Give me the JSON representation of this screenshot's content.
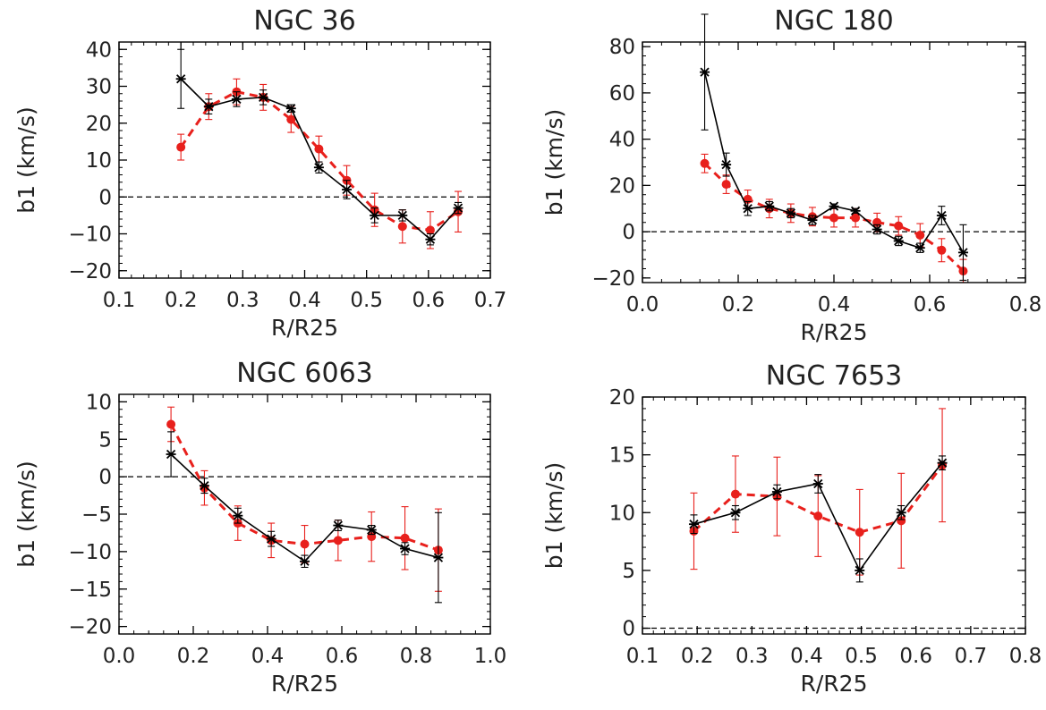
{
  "chart_data": [
    {
      "type": "line",
      "title": "NGC 36",
      "xlabel": "R/R25",
      "ylabel": "b1 (km/s)",
      "xlim": [
        0.1,
        0.7
      ],
      "ylim": [
        -22,
        42
      ],
      "xticks": [
        0.1,
        0.2,
        0.3,
        0.4,
        0.5,
        0.6,
        0.7
      ],
      "xtick_labels": [
        "0.1",
        "0.2",
        "0.3",
        "0.4",
        "0.5",
        "0.6",
        "0.7"
      ],
      "yticks": [
        -20,
        -10,
        0,
        10,
        20,
        30,
        40
      ],
      "ytick_labels": [
        "−20",
        "−10",
        "0",
        "10",
        "20",
        "30",
        "40"
      ],
      "reference_line": 0,
      "series": [
        {
          "name": "black",
          "color": "#000000",
          "style": "solid",
          "marker": "asterisk",
          "x": [
            0.2,
            0.245,
            0.29,
            0.333,
            0.378,
            0.423,
            0.468,
            0.513,
            0.558,
            0.603,
            0.648
          ],
          "y": [
            32,
            24.5,
            26.5,
            27,
            24,
            8,
            2,
            -5,
            -5,
            -11.5,
            -3
          ],
          "err": [
            8,
            2,
            2,
            2,
            1,
            1.5,
            2.5,
            2,
            1.5,
            1.5,
            1.5
          ]
        },
        {
          "name": "red",
          "color": "#e8201c",
          "style": "dashed",
          "marker": "circle",
          "x": [
            0.2,
            0.245,
            0.29,
            0.333,
            0.378,
            0.423,
            0.468,
            0.513,
            0.558,
            0.603,
            0.648
          ],
          "y": [
            13.5,
            24.5,
            28.5,
            27,
            21,
            13,
            4.5,
            -3.5,
            -8,
            -9,
            -4
          ],
          "err": [
            3.5,
            3.5,
            3.5,
            3.5,
            3.5,
            3.5,
            4,
            4.5,
            4.5,
            5,
            5.5
          ]
        }
      ]
    },
    {
      "type": "line",
      "title": "NGC 180",
      "xlabel": "R/R25",
      "ylabel": "b1 (km/s)",
      "xlim": [
        0.0,
        0.8
      ],
      "ylim": [
        -22,
        82
      ],
      "xticks": [
        0.0,
        0.2,
        0.4,
        0.6,
        0.8
      ],
      "xtick_labels": [
        "0.0",
        "0.2",
        "0.4",
        "0.6",
        "0.8"
      ],
      "yticks": [
        -20,
        0,
        20,
        40,
        60,
        80
      ],
      "ytick_labels": [
        "−20",
        "0",
        "20",
        "40",
        "60",
        "80"
      ],
      "reference_line": 0,
      "series": [
        {
          "name": "black",
          "color": "#000000",
          "style": "solid",
          "marker": "asterisk",
          "x": [
            0.13,
            0.175,
            0.22,
            0.265,
            0.31,
            0.355,
            0.4,
            0.445,
            0.49,
            0.535,
            0.58,
            0.625,
            0.67
          ],
          "y": [
            69,
            29,
            10,
            11,
            8,
            5,
            11,
            9,
            1,
            -4,
            -7,
            7,
            -9
          ],
          "err": [
            25,
            5,
            3,
            2,
            2,
            2,
            1,
            1,
            2,
            2,
            2,
            4,
            12
          ]
        },
        {
          "name": "red",
          "color": "#e8201c",
          "style": "dashed",
          "marker": "circle",
          "x": [
            0.13,
            0.175,
            0.22,
            0.265,
            0.31,
            0.355,
            0.4,
            0.445,
            0.49,
            0.535,
            0.58,
            0.625,
            0.67
          ],
          "y": [
            29.5,
            20.5,
            14,
            10,
            8,
            6.5,
            6,
            6,
            4,
            2.5,
            -1.5,
            -8,
            -17
          ],
          "err": [
            4,
            4,
            4,
            4,
            4,
            4,
            4,
            4,
            4,
            4,
            5,
            5,
            5
          ]
        }
      ]
    },
    {
      "type": "line",
      "title": "NGC 6063",
      "xlabel": "R/R25",
      "ylabel": "b1 (km/s)",
      "xlim": [
        0.0,
        1.0
      ],
      "ylim": [
        -21,
        11
      ],
      "xticks": [
        0.0,
        0.2,
        0.4,
        0.6,
        0.8,
        1.0
      ],
      "xtick_labels": [
        "0.0",
        "0.2",
        "0.4",
        "0.6",
        "0.8",
        "1.0"
      ],
      "yticks": [
        -20,
        -15,
        -10,
        -5,
        0,
        5,
        10
      ],
      "ytick_labels": [
        "−20",
        "−15",
        "−10",
        "−5",
        "0",
        "5",
        "10"
      ],
      "reference_line": 0,
      "series": [
        {
          "name": "black",
          "color": "#000000",
          "style": "solid",
          "marker": "asterisk",
          "x": [
            0.14,
            0.23,
            0.32,
            0.41,
            0.5,
            0.59,
            0.68,
            0.77,
            0.86
          ],
          "y": [
            3,
            -1.2,
            -5.2,
            -8.3,
            -11.3,
            -6.5,
            -7.1,
            -9.6,
            -10.8
          ],
          "err": [
            3,
            1,
            1,
            1,
            0.8,
            0.7,
            0.6,
            0.8,
            6
          ]
        },
        {
          "name": "red",
          "color": "#e8201c",
          "style": "dashed",
          "marker": "circle",
          "x": [
            0.14,
            0.23,
            0.32,
            0.41,
            0.5,
            0.59,
            0.68,
            0.77,
            0.86
          ],
          "y": [
            7,
            -1.5,
            -6.2,
            -8.5,
            -9,
            -8.5,
            -8,
            -8.2,
            -9.8
          ],
          "err": [
            2.3,
            2.3,
            2.3,
            2.3,
            2.5,
            2.7,
            3.3,
            4.2,
            5.5
          ]
        }
      ]
    },
    {
      "type": "line",
      "title": "NGC 7653",
      "xlabel": "R/R25",
      "ylabel": "b1 (km/s)",
      "xlim": [
        0.1,
        0.8
      ],
      "ylim": [
        -0.5,
        20
      ],
      "xticks": [
        0.1,
        0.2,
        0.3,
        0.4,
        0.5,
        0.6,
        0.7,
        0.8
      ],
      "xtick_labels": [
        "0.1",
        "0.2",
        "0.3",
        "0.4",
        "0.5",
        "0.6",
        "0.7",
        "0.8"
      ],
      "yticks": [
        0,
        5,
        10,
        15,
        20
      ],
      "ytick_labels": [
        "0",
        "5",
        "10",
        "15",
        "20"
      ],
      "reference_line": 0,
      "series": [
        {
          "name": "black",
          "color": "#000000",
          "style": "solid",
          "marker": "asterisk",
          "x": [
            0.194,
            0.27,
            0.346,
            0.421,
            0.497,
            0.573,
            0.648
          ],
          "y": [
            9,
            10,
            11.8,
            12.5,
            5,
            10,
            14.3
          ],
          "err": [
            0.8,
            0.6,
            0.6,
            0.8,
            1,
            0.6,
            0.6
          ]
        },
        {
          "name": "red",
          "color": "#e8201c",
          "style": "dashed",
          "marker": "circle",
          "x": [
            0.194,
            0.27,
            0.346,
            0.421,
            0.497,
            0.573,
            0.648
          ],
          "y": [
            8.4,
            11.6,
            11.4,
            9.7,
            8.3,
            9.3,
            14.1
          ],
          "err": [
            3.3,
            3.3,
            3.4,
            3.5,
            3.7,
            4.1,
            4.9
          ]
        }
      ]
    }
  ]
}
